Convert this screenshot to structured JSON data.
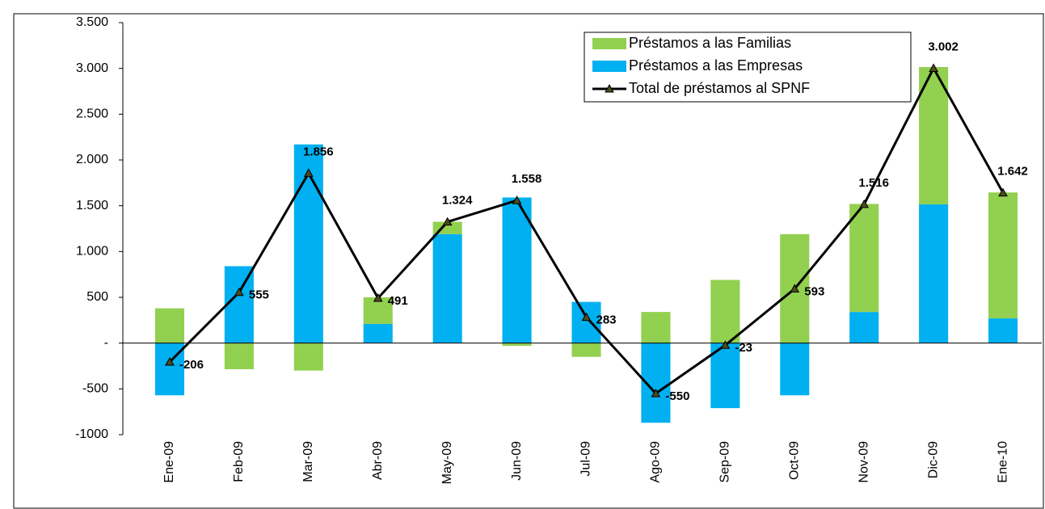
{
  "chart_data": {
    "type": "bar",
    "stacked": true,
    "categories": [
      "Ene-09",
      "Feb-09",
      "Mar-09",
      "Abr-09",
      "May-09",
      "Jun-09",
      "Jul-09",
      "Ago-09",
      "Sep-09",
      "Oct-09",
      "Nov-09",
      "Dic-09",
      "Ene-10"
    ],
    "series": [
      {
        "name": "Préstamos a las Familias",
        "color": "#92d050",
        "values": [
          380,
          -285,
          -300,
          290,
          135,
          -30,
          -150,
          340,
          690,
          1190,
          1180,
          1500,
          1375
        ]
      },
      {
        "name": "Préstamos a las Empresas",
        "color": "#00b0f0",
        "values": [
          -570,
          840,
          2170,
          210,
          1190,
          1590,
          450,
          -870,
          -710,
          -570,
          340,
          1515,
          270
        ]
      },
      {
        "name": "Total de préstamos al SPNF",
        "type": "line",
        "color": "#000000",
        "marker_color": "#4f4a1a",
        "values": [
          -206,
          555,
          1856,
          491,
          1324,
          1558,
          283,
          -550,
          -23,
          593,
          1516,
          3002,
          1642
        ],
        "value_labels": [
          "-206",
          "555",
          "1.856",
          "491",
          "1.324",
          "1.558",
          "283",
          "-550",
          "-23",
          "593",
          "1.516",
          "3.002",
          "1.642"
        ]
      }
    ],
    "ylim": [
      -1000,
      3500
    ],
    "yticks": [
      -1000,
      -500,
      {
        "value": 0,
        "label": "-"
      },
      500,
      {
        "value": 1000,
        "label": "1.000"
      },
      {
        "value": 1500,
        "label": "1.500"
      },
      {
        "value": 2000,
        "label": "2.000"
      },
      {
        "value": 2500,
        "label": "2.500"
      },
      {
        "value": 3000,
        "label": "3.000"
      },
      {
        "value": 3500,
        "label": "3.500"
      }
    ],
    "grid": false,
    "legend": "top-right"
  }
}
